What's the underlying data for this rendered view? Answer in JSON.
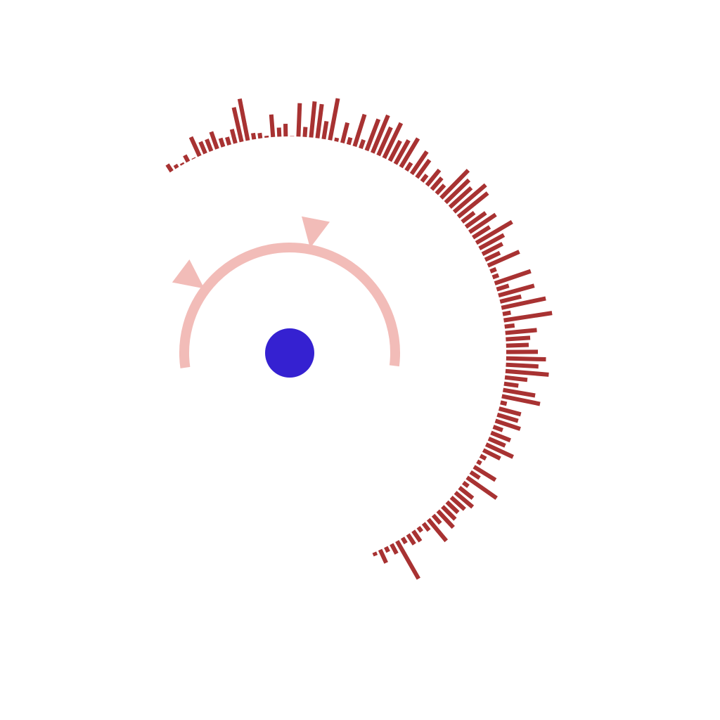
{
  "colors": {
    "background": "#ffffff",
    "bars": "#a83232",
    "ring": "#f2bcb8",
    "center": "#3521d1"
  },
  "chart_data": {
    "type": "bar",
    "layout": "radial",
    "title": "",
    "xlabel": "",
    "ylabel": "",
    "grid": false,
    "legend": "none",
    "bar_angle_range_deg": [
      -33,
      157
    ],
    "ylim": [
      0,
      56
    ],
    "values": [
      9,
      4,
      2,
      8,
      1,
      23,
      14,
      14,
      20,
      10,
      9,
      16,
      39,
      47,
      7,
      6,
      2,
      25,
      10,
      14,
      0,
      37,
      11,
      40,
      38,
      20,
      47,
      4,
      23,
      8,
      37,
      10,
      37,
      45,
      34,
      43,
      25,
      30,
      37,
      10,
      30,
      24,
      9,
      22,
      17,
      13,
      43,
      36,
      32,
      46,
      42,
      17,
      27,
      35,
      22,
      46,
      31,
      25,
      18,
      38,
      7,
      7,
      42,
      14,
      41,
      24,
      50,
      9,
      54,
      11,
      35,
      27,
      25,
      35,
      44,
      36,
      48,
      25,
      16,
      36,
      43,
      7,
      25,
      24,
      29,
      11,
      23,
      20,
      33,
      21,
      7,
      5,
      28,
      12,
      40,
      7,
      19,
      25,
      20,
      17,
      20,
      25,
      12,
      31,
      10,
      6,
      14,
      13,
      7,
      48,
      12,
      6,
      16,
      4
    ],
    "inner_ring": {
      "angle_range_deg": [
        -98,
        97
      ],
      "markers_deg": [
        -53,
        11
      ]
    },
    "center_point": true
  }
}
